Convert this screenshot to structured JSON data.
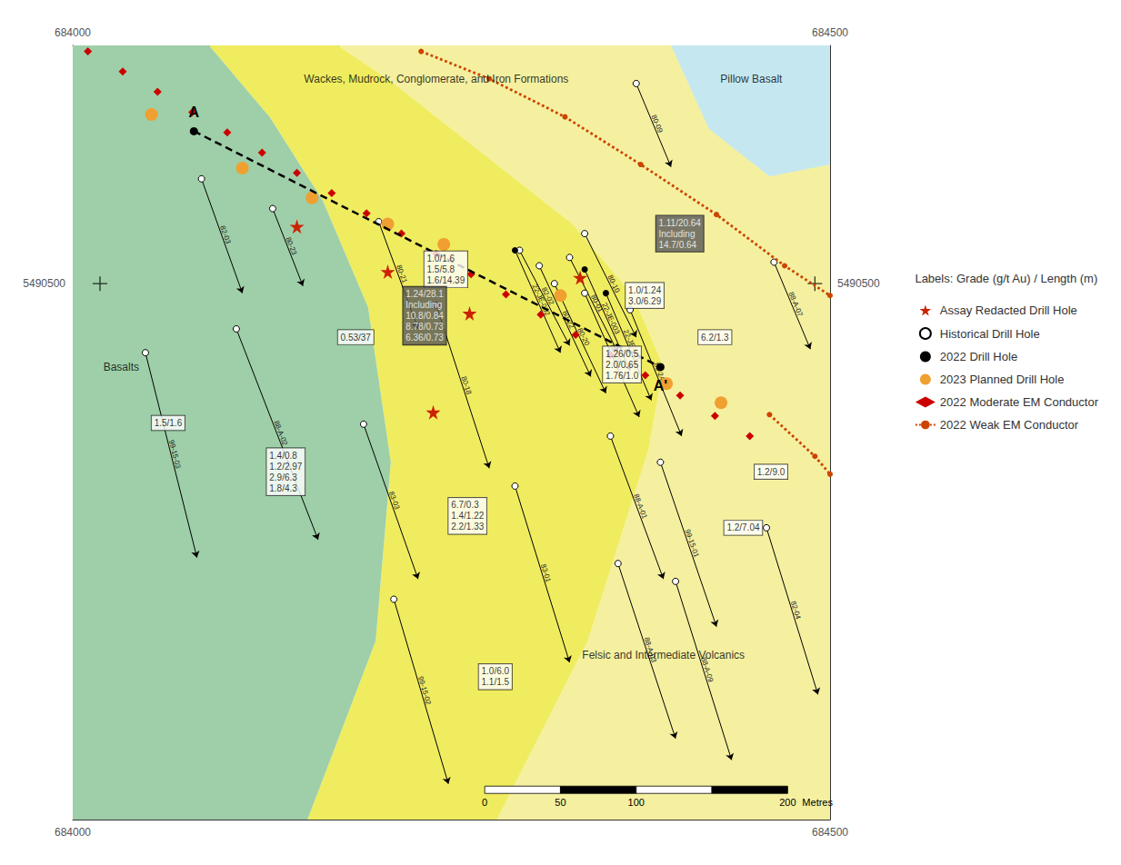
{
  "chart_data": {
    "type": "map",
    "xlim": [
      684000,
      684500
    ],
    "ylim": [
      5490050,
      5490700
    ],
    "xticks": [
      684000,
      684500
    ],
    "yticks": [
      5490500
    ],
    "grid": false,
    "legend": "right",
    "legend_title": "Labels: Grade (g/t Au) / Length (m)",
    "geology": [
      {
        "color": "#f5f0a0",
        "verts": [
          [
            684175,
            5490700
          ],
          [
            684210,
            5490670
          ],
          [
            684250,
            5490630
          ],
          [
            684290,
            5490590
          ],
          [
            684330,
            5490550
          ],
          [
            684370,
            5490490
          ],
          [
            684390,
            5490430
          ],
          [
            684380,
            5490360
          ],
          [
            684340,
            5490200
          ],
          [
            684280,
            5490050
          ],
          [
            684500,
            5490050
          ],
          [
            684500,
            5490700
          ]
        ]
      },
      {
        "color": "#f0ec60",
        "verts": [
          [
            684090,
            5490700
          ],
          [
            684130,
            5490640
          ],
          [
            684165,
            5490570
          ],
          [
            684195,
            5490480
          ],
          [
            684210,
            5490350
          ],
          [
            684200,
            5490200
          ],
          [
            684155,
            5490050
          ],
          [
            684280,
            5490050
          ],
          [
            684340,
            5490200
          ],
          [
            684380,
            5490360
          ],
          [
            684390,
            5490430
          ],
          [
            684370,
            5490490
          ],
          [
            684330,
            5490550
          ],
          [
            684290,
            5490590
          ],
          [
            684250,
            5490630
          ],
          [
            684210,
            5490670
          ],
          [
            684175,
            5490700
          ]
        ]
      },
      {
        "color": "#9ecfa8",
        "verts": [
          [
            684000,
            5490700
          ],
          [
            684000,
            5490050
          ],
          [
            684155,
            5490050
          ],
          [
            684200,
            5490200
          ],
          [
            684210,
            5490350
          ],
          [
            684195,
            5490480
          ],
          [
            684165,
            5490570
          ],
          [
            684130,
            5490640
          ],
          [
            684090,
            5490700
          ]
        ]
      },
      {
        "color": "#c5e8f0",
        "verts": [
          [
            684395,
            5490700
          ],
          [
            684500,
            5490700
          ],
          [
            684500,
            5490600
          ],
          [
            684460,
            5490590
          ],
          [
            684420,
            5490630
          ]
        ]
      }
    ],
    "crosshairs": [
      [
        684018,
        5490500
      ],
      [
        684490,
        5490500
      ]
    ],
    "series": [
      {
        "name": "Assay Redacted Drill Hole",
        "type": "scatter",
        "marker": "star",
        "color": "#cc2200",
        "points": [
          [
            684148,
            5490548
          ],
          [
            684208,
            5490510
          ],
          [
            684262,
            5490475
          ],
          [
            684335,
            5490505
          ],
          [
            684238,
            5490392
          ]
        ]
      },
      {
        "name": "Historical Drill Hole",
        "type": "drill_hole",
        "marker": "open_circle",
        "color": "#000000",
        "holes": [
          {
            "name": "82-03",
            "cx": 684085,
            "cy": 5490588,
            "tx": 684112,
            "ty": 5490492
          },
          {
            "name": "80-23",
            "cx": 684132,
            "cy": 5490563,
            "tx": 684152,
            "ty": 5490498
          },
          {
            "name": "80-21",
            "cx": 684202,
            "cy": 5490552,
            "tx": 684228,
            "ty": 5490462
          },
          {
            "name": "82-02",
            "cx": 684295,
            "cy": 5490528,
            "tx": 684328,
            "ty": 5490448
          },
          {
            "name": "80-09",
            "cx": 684372,
            "cy": 5490668,
            "tx": 684395,
            "ty": 5490598
          },
          {
            "name": "88-A-07",
            "cx": 684463,
            "cy": 5490518,
            "tx": 684487,
            "ty": 5490445
          },
          {
            "name": "88-A-02",
            "cx": 684108,
            "cy": 5490462,
            "tx": 684162,
            "ty": 5490285
          },
          {
            "name": "83-03",
            "cx": 684192,
            "cy": 5490382,
            "tx": 684228,
            "ty": 5490252
          },
          {
            "name": "83-01",
            "cx": 684292,
            "cy": 5490330,
            "tx": 684328,
            "ty": 5490182
          },
          {
            "name": "99-15-02",
            "cx": 684212,
            "cy": 5490235,
            "tx": 684248,
            "ty": 5490080
          },
          {
            "name": "88-A-03",
            "cx": 684360,
            "cy": 5490265,
            "tx": 684398,
            "ty": 5490118
          },
          {
            "name": "88-A-09",
            "cx": 684398,
            "cy": 5490250,
            "tx": 684435,
            "ty": 5490100
          },
          {
            "name": "99-15-03",
            "cx": 684048,
            "cy": 5490442,
            "tx": 684082,
            "ty": 5490270
          },
          {
            "name": "80-22",
            "cx": 684308,
            "cy": 5490515,
            "tx": 684342,
            "ty": 5490422
          },
          {
            "name": "80-20",
            "cx": 684318,
            "cy": 5490500,
            "tx": 684352,
            "ty": 5490408
          },
          {
            "name": "80-25",
            "cx": 684338,
            "cy": 5490492,
            "tx": 684374,
            "ty": 5490388
          },
          {
            "name": "80-24",
            "cx": 684368,
            "cy": 5490478,
            "tx": 684402,
            "ty": 5490372
          },
          {
            "name": "80-10",
            "cx": 684338,
            "cy": 5490542,
            "tx": 684372,
            "ty": 5490455
          },
          {
            "name": "80-01",
            "cx": 684328,
            "cy": 5490522,
            "tx": 684360,
            "ty": 5490442
          },
          {
            "name": "88-A-01",
            "cx": 684355,
            "cy": 5490372,
            "tx": 684390,
            "ty": 5490252
          },
          {
            "name": "99-15-01",
            "cx": 684388,
            "cy": 5490350,
            "tx": 684425,
            "ty": 5490212
          },
          {
            "name": "82-04",
            "cx": 684458,
            "cy": 5490295,
            "tx": 684492,
            "ty": 5490155
          },
          {
            "name": "80-18",
            "cx": 684240,
            "cy": 5490482,
            "tx": 684275,
            "ty": 5490345
          }
        ]
      },
      {
        "name": "2022 Drill Hole",
        "type": "drill_hole",
        "marker": "filled_circle",
        "color": "#000000",
        "holes": [
          {
            "name": "22-JE-001",
            "cx": 684352,
            "cy": 5490492,
            "tx": 684382,
            "ty": 5490402
          },
          {
            "name": "22-JE-002",
            "cx": 684292,
            "cy": 5490528,
            "tx": 684322,
            "ty": 5490442
          },
          {
            "name": "22-JE-003",
            "cx": 684338,
            "cy": 5490512,
            "tx": 684368,
            "ty": 5490427
          }
        ]
      },
      {
        "name": "2023 Planned Drill Hole",
        "type": "scatter",
        "marker": "circle",
        "color": "#f0a030",
        "points": [
          [
            684052,
            5490642
          ],
          [
            684112,
            5490597
          ],
          [
            684158,
            5490572
          ],
          [
            684208,
            5490550
          ],
          [
            684245,
            5490533
          ],
          [
            684322,
            5490490
          ],
          [
            684392,
            5490416
          ],
          [
            684428,
            5490400
          ]
        ]
      },
      {
        "name": "2022 Moderate EM Conductor",
        "type": "scatter",
        "marker": "diamond",
        "color": "#cc0000",
        "points": [
          [
            684010,
            5490695
          ],
          [
            684033,
            5490678
          ],
          [
            684056,
            5490661
          ],
          [
            684079,
            5490644
          ],
          [
            684102,
            5490627
          ],
          [
            684125,
            5490610
          ],
          [
            684148,
            5490593
          ],
          [
            684171,
            5490576
          ],
          [
            684194,
            5490559
          ],
          [
            684217,
            5490542
          ],
          [
            684240,
            5490525
          ],
          [
            684263,
            5490508
          ],
          [
            684286,
            5490491
          ],
          [
            684309,
            5490474
          ],
          [
            684332,
            5490457
          ],
          [
            684355,
            5490440
          ],
          [
            684378,
            5490423
          ],
          [
            684401,
            5490406
          ],
          [
            684424,
            5490389
          ],
          [
            684447,
            5490372
          ]
        ]
      },
      {
        "name": "2022 Weak EM Conductor",
        "type": "line",
        "line_style": "dotted",
        "marker": "circle",
        "color": "#cc4400",
        "segments": [
          {
            "x": [
              684230,
              684275,
              684325,
              684375,
              684425,
              684470,
              684500
            ],
            "y": [
              5490695,
              5490672,
              5490640,
              5490600,
              5490558,
              5490515,
              5490490
            ]
          },
          {
            "x": [
              684460,
              684490,
              684500
            ],
            "y": [
              5490390,
              5490355,
              5490340
            ]
          }
        ]
      }
    ],
    "section_line": {
      "x": [
        684080,
        684388
      ],
      "y": [
        5490628,
        5490430
      ],
      "labels": [
        "A",
        "A'"
      ]
    },
    "assay_labels": [
      {
        "text": "1.0/1.6\n1.5/5.8\n1.6/14.39",
        "x": 684232,
        "y": 5490512,
        "color": "#ffffff"
      },
      {
        "text": "0.53/37",
        "x": 684175,
        "y": 5490455,
        "color": "#ffffff"
      },
      {
        "text": "1.5/1.6",
        "x": 684052,
        "y": 5490383,
        "color": "#ffffff"
      },
      {
        "text": "1.4/0.8\n1.2/2.97\n2.9/6.3\n1.8/4.3",
        "x": 684128,
        "y": 5490342,
        "color": "#ffffff"
      },
      {
        "text": "6.7/0.3\n1.4/1.22\n2.2/1.33",
        "x": 684248,
        "y": 5490305,
        "color": "#ffffff"
      },
      {
        "text": "1.0/6.0\n1.1/1.5",
        "x": 684268,
        "y": 5490170,
        "color": "#ffffff"
      },
      {
        "text": "1.0/1.24\n3.0/6.29",
        "x": 684365,
        "y": 5490490,
        "color": "#ffffff"
      },
      {
        "text": "6.2/1.3",
        "x": 684413,
        "y": 5490455,
        "color": "#ffffff"
      },
      {
        "text": "1.2/9.0",
        "x": 684450,
        "y": 5490342,
        "color": "#ffffff"
      },
      {
        "text": "1.2/7.04",
        "x": 684430,
        "y": 5490295,
        "color": "#ffffff"
      },
      {
        "text": "1.26/0.5\n2.0/0.65\n1.76/1.0",
        "x": 684350,
        "y": 5490432,
        "color": "#ffffff"
      },
      {
        "text": "1.24/28.1\nIncluding\n10.8/0.84\n8.78/0.73\n6.36/0.73",
        "x": 684218,
        "y": 5490473,
        "color": "#595959"
      },
      {
        "text": "1.11/20.64\nIncluding\n14.7/0.64",
        "x": 684385,
        "y": 5490542,
        "color": "#595959"
      }
    ],
    "annotations": [
      {
        "text": "Basalts",
        "x": 684032,
        "y": 5490430
      },
      {
        "text": "Wackes, Mudrock, Conglomerate, and Iron Formations",
        "x": 684240,
        "y": 5490672
      },
      {
        "text": "Pillow Basalt",
        "x": 684448,
        "y": 5490672
      },
      {
        "text": "Felsic and Intermediate Volcanics",
        "x": 684390,
        "y": 5490188
      }
    ],
    "scale_bar": {
      "x0": 684272,
      "y0": 5490075,
      "ticks": [
        0,
        50,
        100,
        150,
        200
      ],
      "labels": [
        0,
        50,
        100,
        200
      ],
      "unit": "Metres"
    }
  }
}
